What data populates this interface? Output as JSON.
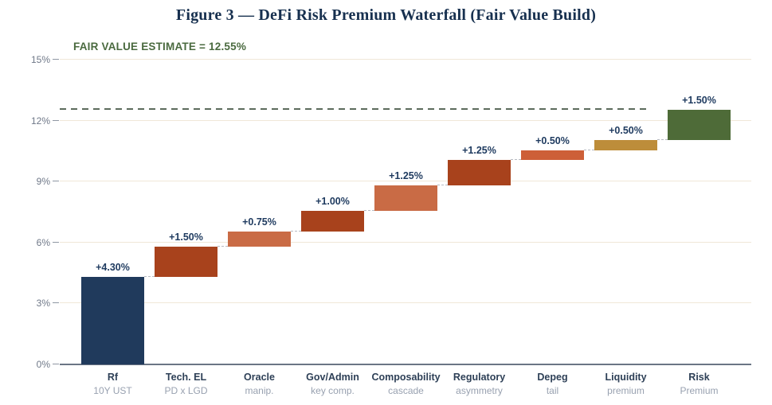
{
  "header": {
    "title": "Figure 3 — DeFi Risk Premium Waterfall (Fair Value Build)",
    "annotation": "FAIR VALUE ESTIMATE = 12.55%"
  },
  "chart_data": {
    "type": "bar",
    "subtype": "waterfall",
    "title": "Figure 3 — DeFi Risk Premium Waterfall (Fair Value Build)",
    "annotation": "FAIR VALUE ESTIMATE = 12.55%",
    "fair_value_pct": 12.55,
    "ylim": [
      0,
      15
    ],
    "grid": true,
    "legend_position": "none",
    "yticks": [
      {
        "value": 0,
        "label": "0%"
      },
      {
        "value": 3,
        "label": "3%"
      },
      {
        "value": 6,
        "label": "6%"
      },
      {
        "value": 9,
        "label": "9%"
      },
      {
        "value": 12,
        "label": "12%"
      },
      {
        "value": 15,
        "label": "15%"
      }
    ],
    "bars": [
      {
        "label": "Rf",
        "sublabel": "10Y UST",
        "delta": 4.3,
        "delta_label": "+4.30%",
        "start": 0.0,
        "end": 4.3,
        "color": "#203a5c"
      },
      {
        "label": "Tech. EL",
        "sublabel": "PD x LGD",
        "delta": 1.5,
        "delta_label": "+1.50%",
        "start": 4.3,
        "end": 5.8,
        "color": "#a8421c"
      },
      {
        "label": "Oracle",
        "sublabel": "manip.",
        "delta": 0.75,
        "delta_label": "+0.75%",
        "start": 5.8,
        "end": 6.55,
        "color": "#c96b45"
      },
      {
        "label": "Gov/Admin",
        "sublabel": "key comp.",
        "delta": 1.0,
        "delta_label": "+1.00%",
        "start": 6.55,
        "end": 7.55,
        "color": "#a8421c"
      },
      {
        "label": "Composability",
        "sublabel": "cascade",
        "delta": 1.25,
        "delta_label": "+1.25%",
        "start": 7.55,
        "end": 8.8,
        "color": "#c96b45"
      },
      {
        "label": "Regulatory",
        "sublabel": "asymmetry",
        "delta": 1.25,
        "delta_label": "+1.25%",
        "start": 8.8,
        "end": 10.05,
        "color": "#a8421c"
      },
      {
        "label": "Depeg",
        "sublabel": "tail",
        "delta": 0.5,
        "delta_label": "+0.50%",
        "start": 10.05,
        "end": 10.55,
        "color": "#cd5f38"
      },
      {
        "label": "Liquidity",
        "sublabel": "premium",
        "delta": 0.5,
        "delta_label": "+0.50%",
        "start": 10.55,
        "end": 11.05,
        "color": "#bd8d3a"
      },
      {
        "label": "Risk",
        "sublabel": "Premium",
        "delta": 1.5,
        "delta_label": "+1.50%",
        "start": 11.05,
        "end": 12.55,
        "color": "#4e6b38"
      }
    ]
  },
  "colors": {
    "title_text": "#17304f",
    "annotation_text": "#4a6a3f",
    "value_label_text": "#1e3a5f",
    "tick_label_text": "#6f7888",
    "category_label_text": "#2e4057",
    "category_sublabel_text": "#98a1b0",
    "gridline": "#f0e7d8",
    "axis_line": "#6b7585",
    "tick_mark": "#8f97a3",
    "fair_value_line": "#5c6b5c",
    "connector": "#b6bac2",
    "background": "#ffffff"
  }
}
